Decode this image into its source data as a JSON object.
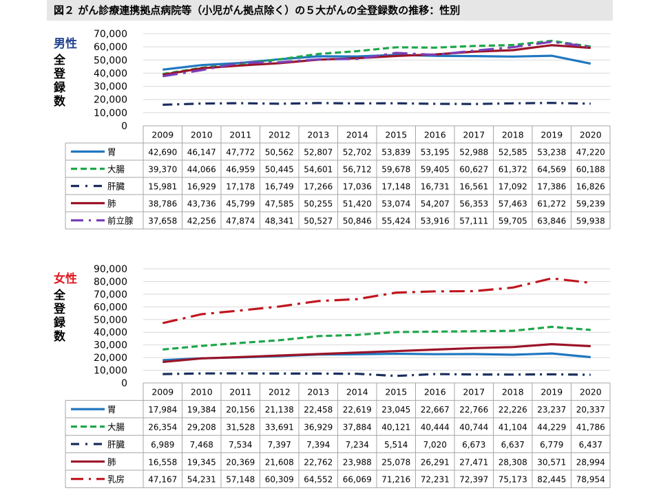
{
  "figure_title": "図２ がん診療連携拠点病院等（小児がん拠点除く）の５大がんの全登録数の推移：性別",
  "colors": {
    "stomach": "#1f77c0",
    "colorectal": "#1ea64a",
    "liver": "#1a2e5e",
    "lung": "#9b1428",
    "prostate": "#7a3fb8",
    "breast": "#c0161e",
    "male_label": "#1f3f8f",
    "female_label": "#e0161e",
    "grid": "#d9d9d9",
    "table_border": "#a6a6a6"
  },
  "chart_data": [
    {
      "type": "line",
      "gender_label": "男性",
      "ylabel": "全登録数",
      "ylim": [
        0,
        70000
      ],
      "yticks": [
        "0",
        "10,000",
        "20,000",
        "30,000",
        "40,000",
        "50,000",
        "60,000",
        "70,000"
      ],
      "grid": true,
      "legend": "data-table",
      "categories": [
        "2009",
        "2010",
        "2011",
        "2012",
        "2013",
        "2014",
        "2015",
        "2016",
        "2017",
        "2018",
        "2019",
        "2020"
      ],
      "series": [
        {
          "name": "胃",
          "color": "#1f77c0",
          "dash": "solid",
          "values": [
            42690,
            46147,
            47772,
            50562,
            52807,
            52702,
            53839,
            53195,
            52988,
            52585,
            53238,
            47220
          ],
          "labels": [
            "42,690",
            "46,147",
            "47,772",
            "50,562",
            "52,807",
            "52,702",
            "53,839",
            "53,195",
            "52,988",
            "52,585",
            "53,238",
            "47,220"
          ]
        },
        {
          "name": "大腸",
          "color": "#1ea64a",
          "dash": "dashed",
          "values": [
            39370,
            44066,
            46959,
            50445,
            54601,
            56712,
            59678,
            59405,
            60627,
            61372,
            64569,
            60188
          ],
          "labels": [
            "39,370",
            "44,066",
            "46,959",
            "50,445",
            "54,601",
            "56,712",
            "59,678",
            "59,405",
            "60,627",
            "61,372",
            "64,569",
            "60,188"
          ]
        },
        {
          "name": "肝臓",
          "color": "#1a2e5e",
          "dash": "dashdot",
          "values": [
            15981,
            16929,
            17178,
            16749,
            17266,
            17036,
            17148,
            16731,
            16561,
            17092,
            17386,
            16826
          ],
          "labels": [
            "15,981",
            "16,929",
            "17,178",
            "16,749",
            "17,266",
            "17,036",
            "17,148",
            "16,731",
            "16,561",
            "17,092",
            "17,386",
            "16,826"
          ]
        },
        {
          "name": "肺",
          "color": "#9b1428",
          "dash": "solid",
          "values": [
            38786,
            43736,
            45799,
            47585,
            50255,
            51420,
            53074,
            54207,
            56353,
            57463,
            61272,
            59239
          ],
          "labels": [
            "38,786",
            "43,736",
            "45,799",
            "47,585",
            "50,255",
            "51,420",
            "53,074",
            "54,207",
            "56,353",
            "57,463",
            "61,272",
            "59,239"
          ]
        },
        {
          "name": "前立腺",
          "color": "#7a3fb8",
          "dash": "longdashdot",
          "values": [
            37658,
            42256,
            47874,
            48341,
            50527,
            50846,
            55424,
            53916,
            57111,
            59705,
            63846,
            59938
          ],
          "labels": [
            "37,658",
            "42,256",
            "47,874",
            "48,341",
            "50,527",
            "50,846",
            "55,424",
            "53,916",
            "57,111",
            "59,705",
            "63,846",
            "59,938"
          ]
        }
      ]
    },
    {
      "type": "line",
      "gender_label": "女性",
      "ylabel": "全登録数",
      "ylim": [
        0,
        90000
      ],
      "yticks": [
        "0",
        "10,000",
        "20,000",
        "30,000",
        "40,000",
        "50,000",
        "60,000",
        "70,000",
        "80,000",
        "90,000"
      ],
      "grid": true,
      "legend": "data-table",
      "categories": [
        "2009",
        "2010",
        "2011",
        "2012",
        "2013",
        "2014",
        "2015",
        "2016",
        "2017",
        "2018",
        "2019",
        "2020"
      ],
      "series": [
        {
          "name": "胃",
          "color": "#1f77c0",
          "dash": "solid",
          "values": [
            17984,
            19384,
            20156,
            21138,
            22458,
            22619,
            23045,
            22667,
            22766,
            22226,
            23237,
            20337
          ],
          "labels": [
            "17,984",
            "19,384",
            "20,156",
            "21,138",
            "22,458",
            "22,619",
            "23,045",
            "22,667",
            "22,766",
            "22,226",
            "23,237",
            "20,337"
          ]
        },
        {
          "name": "大腸",
          "color": "#1ea64a",
          "dash": "dashed",
          "values": [
            26354,
            29208,
            31528,
            33691,
            36929,
            37884,
            40121,
            40444,
            40744,
            41104,
            44229,
            41786
          ],
          "labels": [
            "26,354",
            "29,208",
            "31,528",
            "33,691",
            "36,929",
            "37,884",
            "40,121",
            "40,444",
            "40,744",
            "41,104",
            "44,229",
            "41,786"
          ]
        },
        {
          "name": "肝臓",
          "color": "#1a2e5e",
          "dash": "dashdot",
          "values": [
            6989,
            7468,
            7534,
            7397,
            7394,
            7234,
            5514,
            7020,
            6673,
            6637,
            6779,
            6437
          ],
          "labels": [
            "6,989",
            "7,468",
            "7,534",
            "7,397",
            "7,394",
            "7,234",
            "5,514",
            "7,020",
            "6,673",
            "6,637",
            "6,779",
            "6,437"
          ]
        },
        {
          "name": "肺",
          "color": "#9b1428",
          "dash": "solid",
          "values": [
            16558,
            19345,
            20369,
            21608,
            22762,
            23988,
            25078,
            26291,
            27471,
            28308,
            30571,
            28994
          ],
          "labels": [
            "16,558",
            "19,345",
            "20,369",
            "21,608",
            "22,762",
            "23,988",
            "25,078",
            "26,291",
            "27,471",
            "28,308",
            "30,571",
            "28,994"
          ]
        },
        {
          "name": "乳房",
          "color": "#c0161e",
          "dash": "longdashdot",
          "values": [
            47167,
            54231,
            57148,
            60309,
            64552,
            66069,
            71216,
            72231,
            72397,
            75173,
            82445,
            78954
          ],
          "labels": [
            "47,167",
            "54,231",
            "57,148",
            "60,309",
            "64,552",
            "66,069",
            "71,216",
            "72,231",
            "72,397",
            "75,173",
            "82,445",
            "78,954"
          ]
        }
      ]
    }
  ]
}
